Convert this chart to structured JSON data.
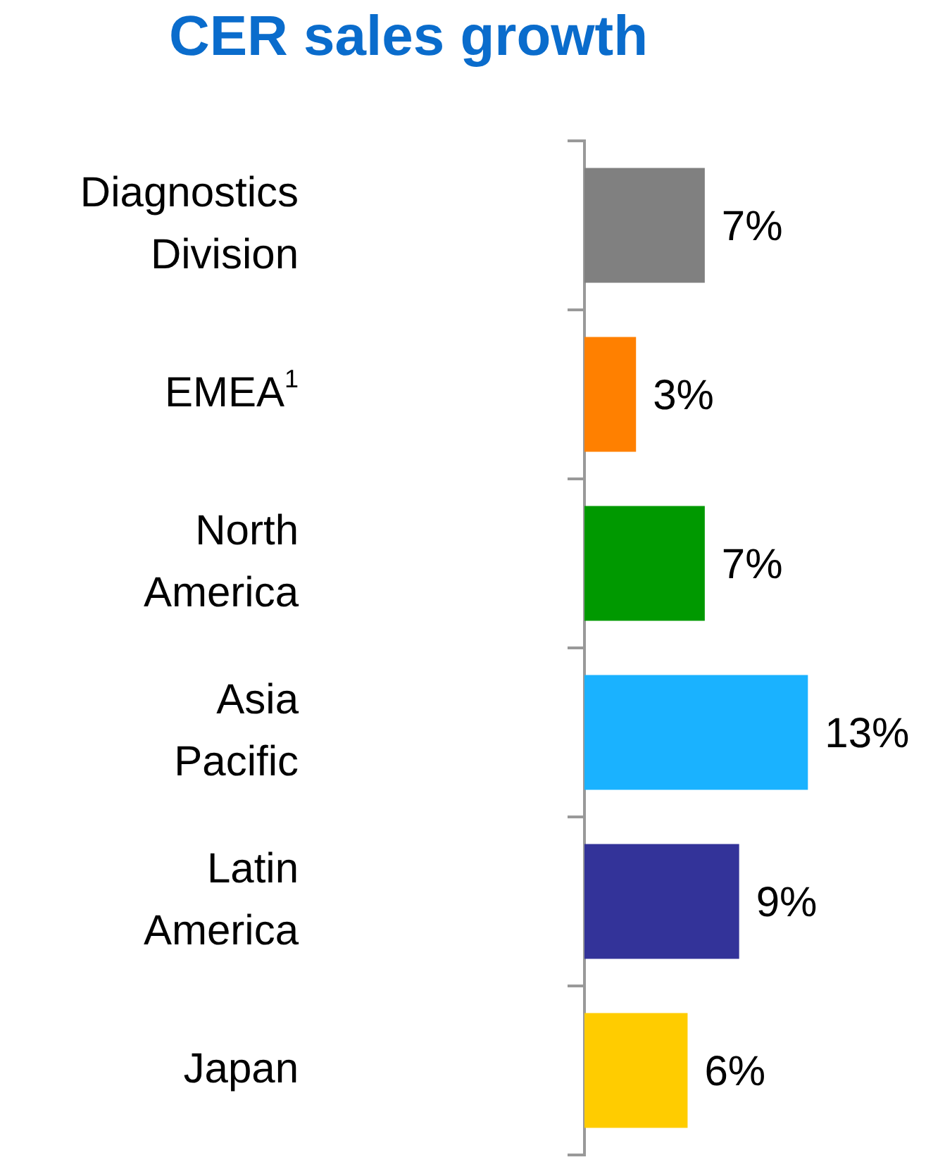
{
  "chart_data": {
    "type": "bar",
    "orientation": "horizontal",
    "title": "CER sales growth",
    "categories": [
      "Diagnostics Division",
      "EMEA$^{1}$",
      "North America",
      "Asia Pacific",
      "Latin America",
      "Japan"
    ],
    "values": [
      7,
      3,
      7,
      13,
      9,
      6
    ],
    "colors": [
      "#808080",
      "#ff8000",
      "#009900",
      "#1ab2ff",
      "#333399",
      "#ffcc00"
    ],
    "value_labels": [
      "7%",
      "3%",
      "7%",
      "13%",
      "9%",
      "6%"
    ],
    "tick_labels": "y",
    "legend": false
  }
}
